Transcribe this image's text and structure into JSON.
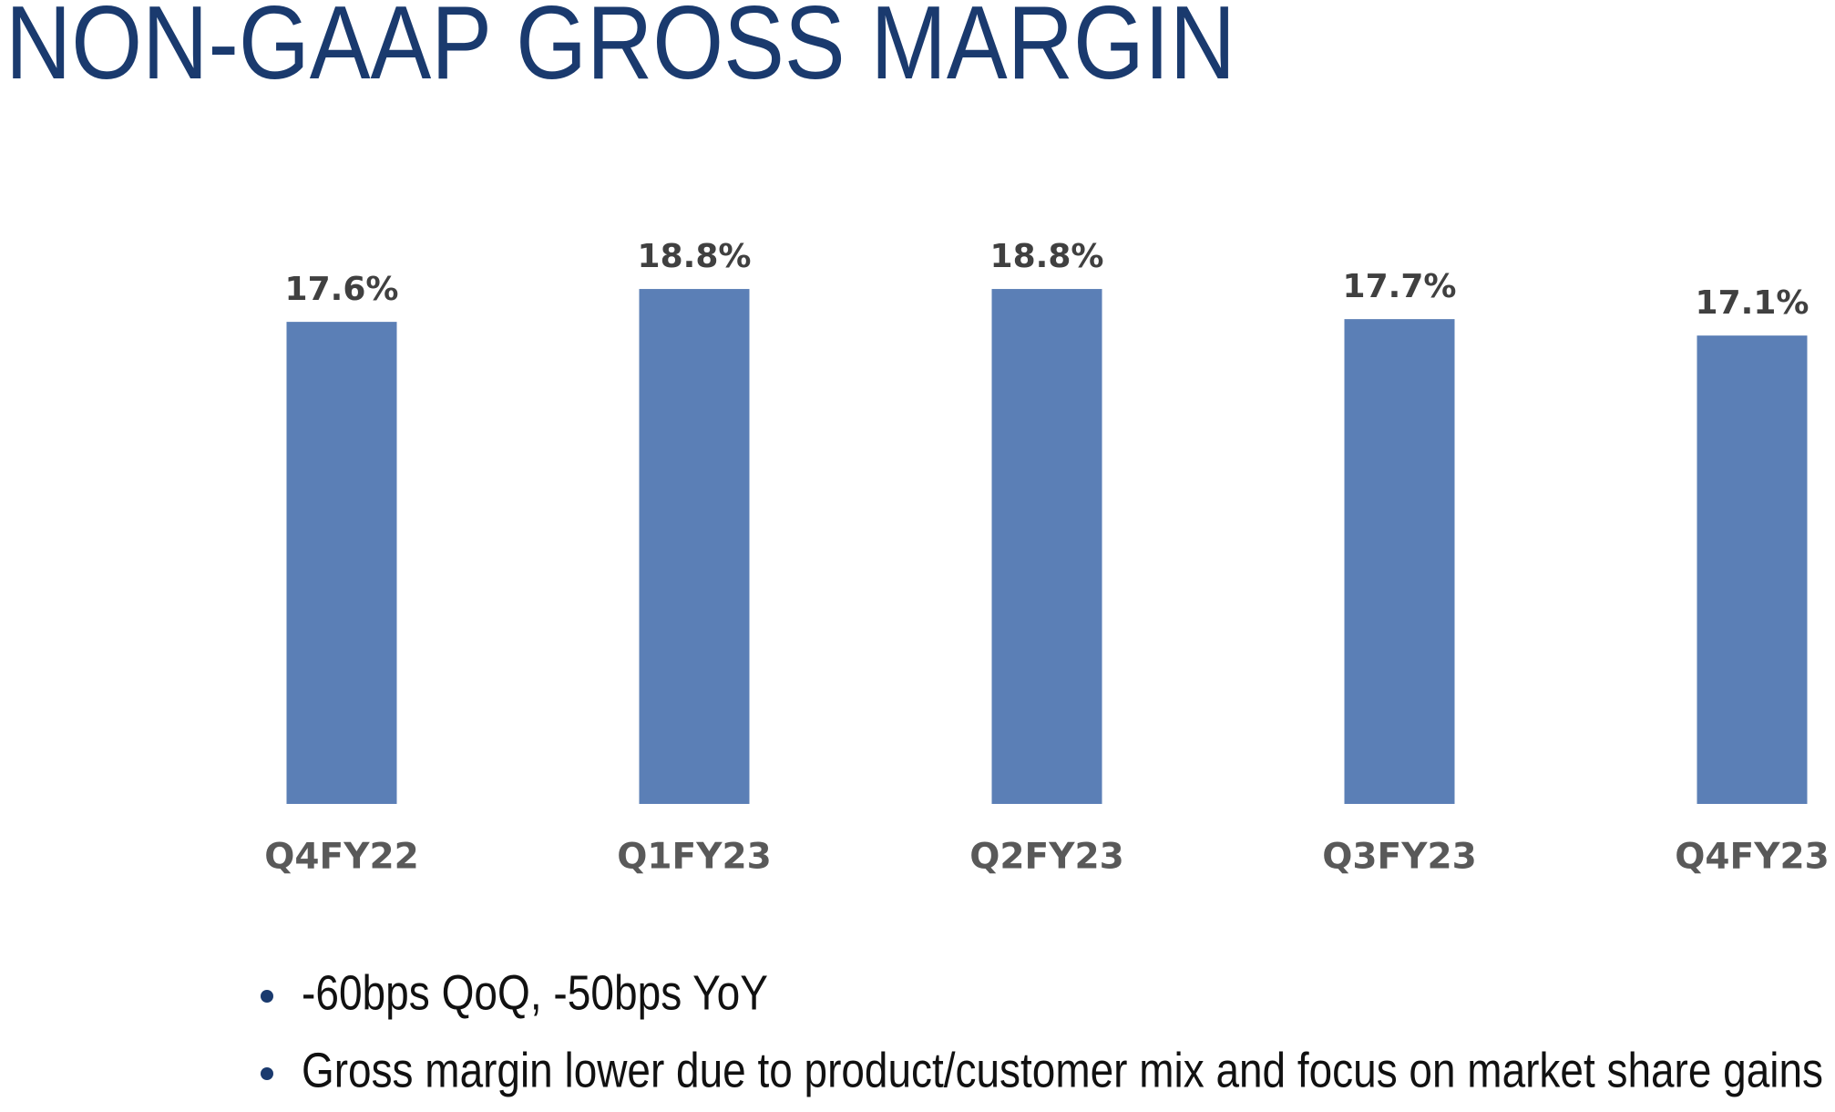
{
  "chart_data": {
    "type": "bar",
    "title": "NON-GAAP GROSS MARGIN",
    "categories": [
      "Q4FY22",
      "Q1FY23",
      "Q2FY23",
      "Q3FY23",
      "Q4FY23"
    ],
    "values": [
      17.6,
      18.8,
      18.8,
      17.7,
      17.1
    ],
    "value_labels": [
      "17.6%",
      "18.8%",
      "18.8%",
      "17.7%",
      "17.1%"
    ],
    "color": "#5b7fb6",
    "ylim": [
      0,
      20
    ],
    "annotations": [
      "-60bps QoQ, -50bps YoY",
      "Gross margin lower due to product/customer mix and focus on market share gains"
    ]
  }
}
